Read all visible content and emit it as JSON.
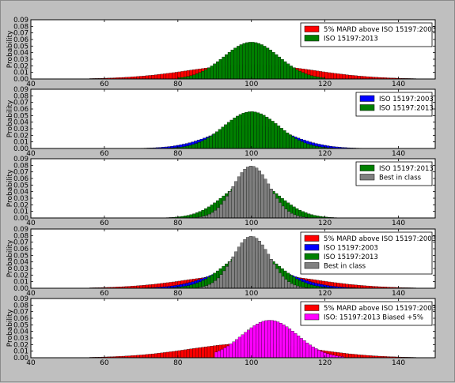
{
  "chart_data": {
    "type": "bar",
    "x_range": [
      40,
      150
    ],
    "bin_width": 0.8,
    "panels": [
      {
        "ylabel": "Probability",
        "ylim": [
          0,
          0.09
        ],
        "yticks": [
          "0.00",
          "0.01",
          "0.02",
          "0.03",
          "0.04",
          "0.05",
          "0.06",
          "0.07",
          "0.08",
          "0.09"
        ],
        "xticks": [
          "40",
          "60",
          "80",
          "100",
          "120",
          "140"
        ],
        "legend_position": "top-right",
        "series": [
          {
            "name": "5% MARD above ISO 15197:2003",
            "color": "#ff0000",
            "mean": 100,
            "sd": 16.5,
            "peak": 0.022,
            "xmin": 56,
            "xmax": 145
          },
          {
            "name": "ISO 15197:2013",
            "color": "#008000",
            "mean": 100,
            "sd": 7.5,
            "peak": 0.056,
            "xmin": 80,
            "xmax": 120
          }
        ]
      },
      {
        "ylabel": "Probability",
        "ylim": [
          0,
          0.09
        ],
        "yticks": [
          "0.00",
          "0.01",
          "0.02",
          "0.03",
          "0.04",
          "0.05",
          "0.06",
          "0.07",
          "0.08",
          "0.09"
        ],
        "xticks": [
          "40",
          "60",
          "80",
          "100",
          "120",
          "140"
        ],
        "legend_position": "top-right",
        "series": [
          {
            "name": "ISO 15197:2003",
            "color": "#0000ff",
            "mean": 100,
            "sd": 10,
            "peak": 0.036,
            "xmin": 70,
            "xmax": 130
          },
          {
            "name": "ISO 15197:2013",
            "color": "#008000",
            "mean": 100,
            "sd": 7.5,
            "peak": 0.056,
            "xmin": 75,
            "xmax": 125
          }
        ]
      },
      {
        "ylabel": "Probability",
        "ylim": [
          0,
          0.09
        ],
        "yticks": [
          "0.00",
          "0.01",
          "0.02",
          "0.03",
          "0.04",
          "0.05",
          "0.06",
          "0.07",
          "0.08",
          "0.09"
        ],
        "xticks": [
          "40",
          "60",
          "80",
          "100",
          "120",
          "140"
        ],
        "legend_position": "top-right",
        "series": [
          {
            "name": "ISO 15197:2013",
            "color": "#008000",
            "mean": 100,
            "sd": 7.5,
            "peak": 0.056,
            "xmin": 76,
            "xmax": 124
          },
          {
            "name": "Best in class",
            "color": "#808080",
            "mean": 100,
            "sd": 5,
            "peak": 0.079,
            "xmin": 85,
            "xmax": 115
          }
        ]
      },
      {
        "ylabel": "Probability",
        "ylim": [
          0,
          0.09
        ],
        "yticks": [
          "0.00",
          "0.01",
          "0.02",
          "0.03",
          "0.04",
          "0.05",
          "0.06",
          "0.07",
          "0.08",
          "0.09"
        ],
        "xticks": [
          "40",
          "60",
          "80",
          "100",
          "120",
          "140"
        ],
        "legend_position": "top-right",
        "series": [
          {
            "name": "5% MARD above ISO 15197:2003",
            "color": "#ff0000",
            "mean": 100,
            "sd": 16.5,
            "peak": 0.022,
            "xmin": 56,
            "xmax": 145
          },
          {
            "name": "ISO 15197:2003",
            "color": "#0000ff",
            "mean": 100,
            "sd": 10,
            "peak": 0.036,
            "xmin": 70,
            "xmax": 130
          },
          {
            "name": "ISO 15197:2013",
            "color": "#008000",
            "mean": 100,
            "sd": 7.5,
            "peak": 0.056,
            "xmin": 76,
            "xmax": 124
          },
          {
            "name": "Best in class",
            "color": "#808080",
            "mean": 100,
            "sd": 5,
            "peak": 0.079,
            "xmin": 85,
            "xmax": 115
          }
        ]
      },
      {
        "ylabel": "Probability",
        "ylim": [
          0,
          0.09
        ],
        "yticks": [
          "0.00",
          "0.01",
          "0.02",
          "0.03",
          "0.04",
          "0.05",
          "0.06",
          "0.07",
          "0.08",
          "0.09"
        ],
        "xticks": [
          "40",
          "60",
          "80",
          "100",
          "120",
          "140"
        ],
        "legend_position": "top-right",
        "series": [
          {
            "name": "5% MARD above ISO 15197:2003",
            "color": "#ff0000",
            "mean": 100,
            "sd": 16.5,
            "peak": 0.022,
            "xmin": 56,
            "xmax": 145
          },
          {
            "name": "ISO: 15197:2013 Biased +5%",
            "color": "#ff00ff",
            "mean": 105,
            "sd": 7.5,
            "peak": 0.057,
            "xmin": 90,
            "xmax": 125
          }
        ]
      }
    ]
  }
}
